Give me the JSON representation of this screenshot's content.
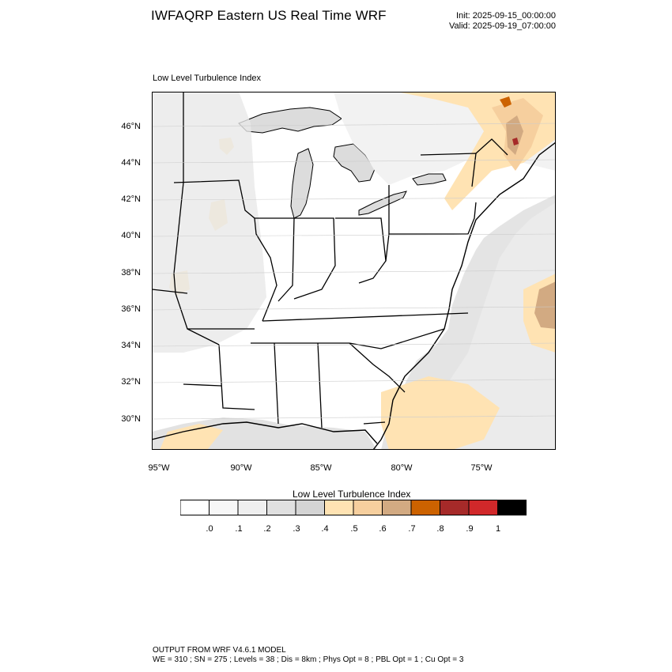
{
  "header": {
    "title": "IWFAQRP Eastern US Real Time WRF",
    "init": "Init: 2025-09-15_00:00:00",
    "valid": "Valid: 2025-09-19_07:00:00"
  },
  "map": {
    "title": "Low Level Turbulence Index",
    "lat_labels": [
      "46°N",
      "44°N",
      "42°N",
      "40°N",
      "38°N",
      "36°N",
      "34°N",
      "32°N",
      "30°N"
    ],
    "lon_labels": [
      "95°W",
      "90°W",
      "85°W",
      "80°W",
      "75°W"
    ],
    "extent": {
      "lon_min": -95.3,
      "lon_max": -70.2,
      "lat_min": 28.4,
      "lat_max": 47.8
    }
  },
  "colorbar": {
    "title": "Low Level Turbulence Index",
    "labels": [
      ".0",
      ".1",
      ".2",
      ".3",
      ".4",
      ".5",
      ".6",
      ".7",
      ".8",
      ".9",
      "1"
    ],
    "colors": [
      "#ffffff",
      "#f7f7f7",
      "#efefef",
      "#e0e0e0",
      "#d4d4d4",
      "#ffe3b3",
      "#f6cf9e",
      "#d2aa82",
      "#cc6200",
      "#a62a29",
      "#d1282a",
      "#000000"
    ]
  },
  "footer": {
    "line1": "OUTPUT FROM WRF V4.6.1 MODEL",
    "line2": "WE = 310 ; SN = 275 ; Levels = 38 ; Dis = 8km ; Phys Opt = 8 ; PBL Opt = 1 ; Cu Opt = 3"
  }
}
